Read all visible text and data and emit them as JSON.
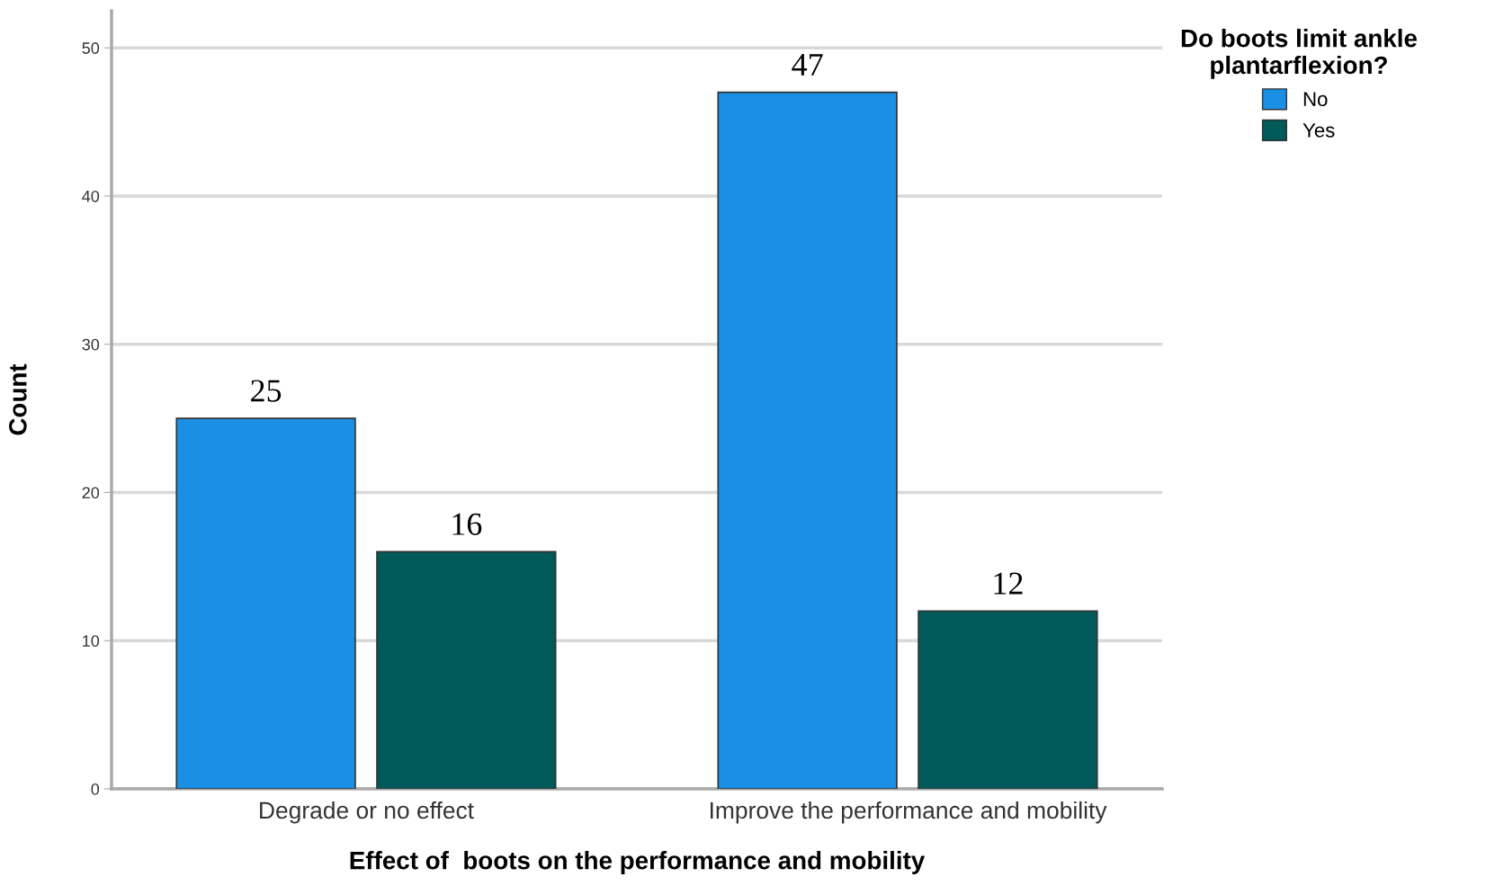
{
  "chart_data": {
    "type": "bar",
    "xlabel": "Effect of  boots on the performance and mobility",
    "ylabel": "Count",
    "legend_title": "Do boots limit ankle\nplantarflexion?",
    "categories": [
      "Degrade or no effect",
      "Improve the performance and mobility"
    ],
    "series": [
      {
        "name": "No",
        "color": "#1a8fe3",
        "values": [
          25,
          47
        ]
      },
      {
        "name": "Yes",
        "color": "#005a5a",
        "values": [
          16,
          12
        ]
      }
    ],
    "ylim": [
      0,
      52.5
    ],
    "yticks": [
      0,
      10,
      20,
      30,
      40,
      50
    ],
    "grid": "y",
    "legend": "top right",
    "data_labels": true
  }
}
